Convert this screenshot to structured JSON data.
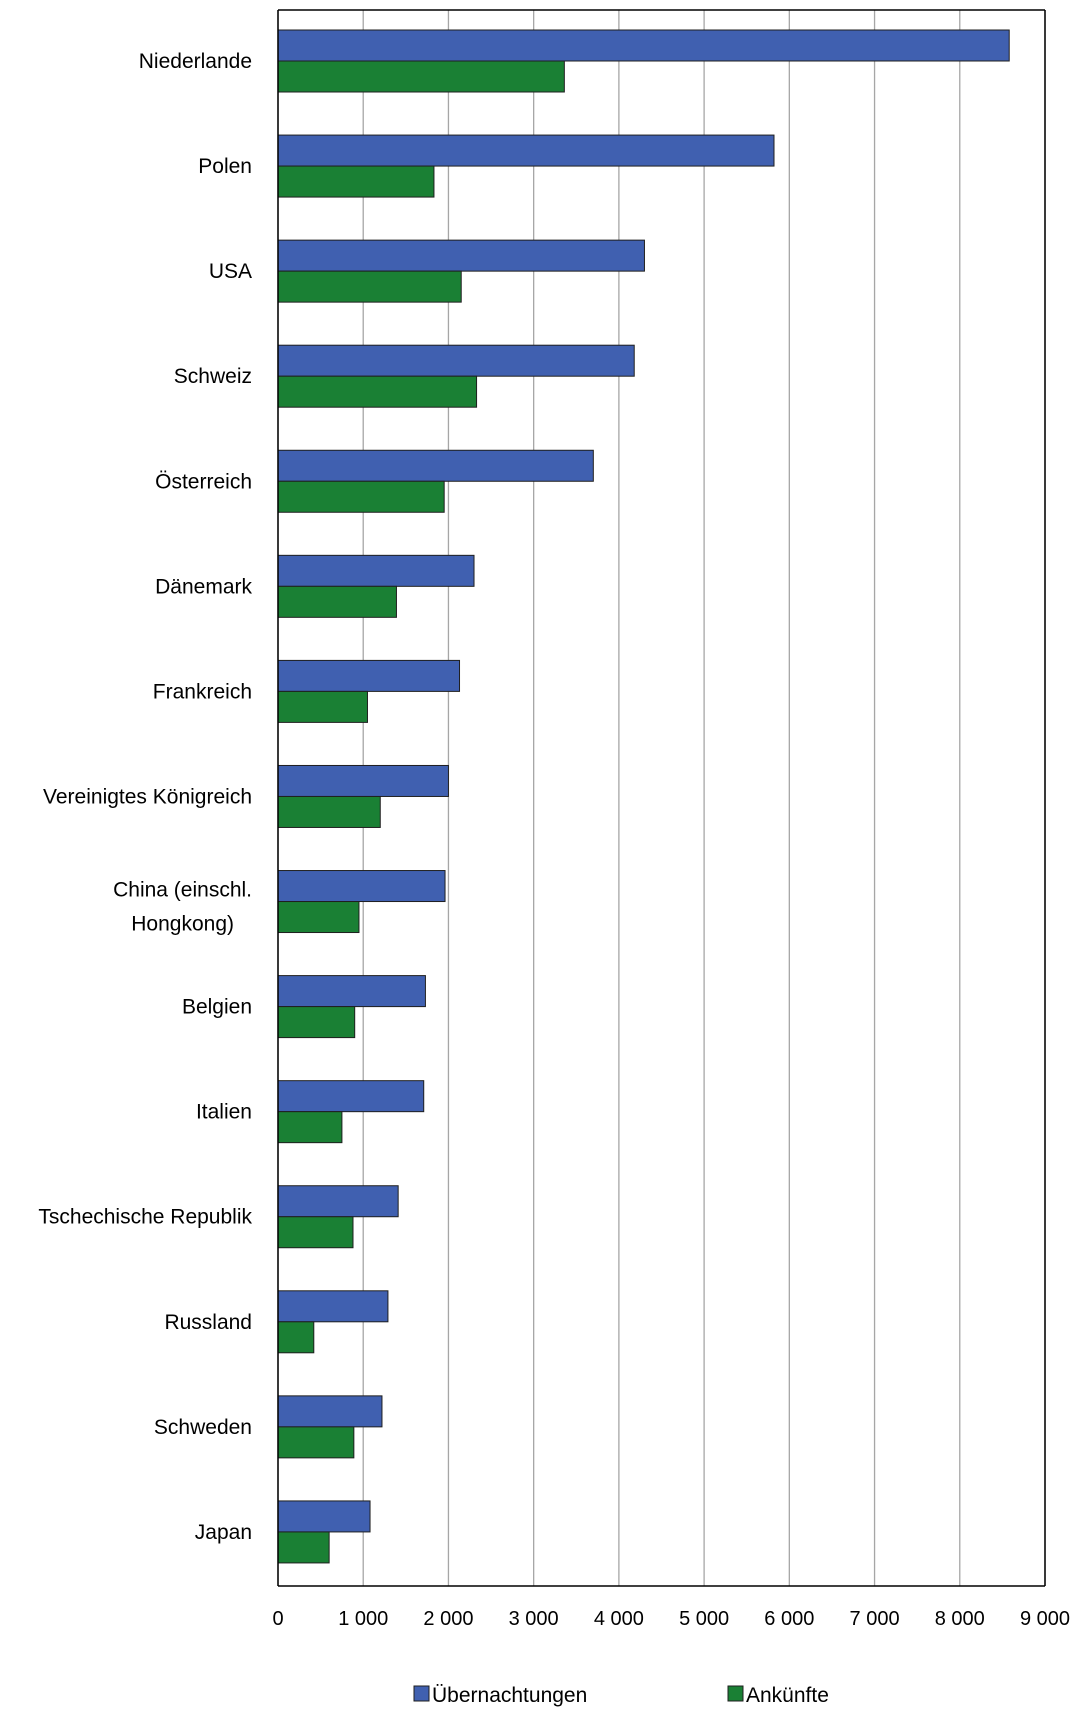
{
  "chart_data": {
    "type": "bar",
    "orientation": "horizontal",
    "categories": [
      "Niederlande",
      "Polen",
      "USA",
      "Schweiz",
      "Österreich",
      "Dänemark",
      "Frankreich",
      "Vereinigtes Königreich",
      "China (einschl. Hongkong)",
      "Belgien",
      "Italien",
      "Tschechische Republik",
      "Russland",
      "Schweden",
      "Japan"
    ],
    "series": [
      {
        "name": "Übernachtungen",
        "color": "#4060b0",
        "values": [
          8580,
          5820,
          4300,
          4180,
          3700,
          2300,
          2130,
          2000,
          1960,
          1730,
          1710,
          1410,
          1290,
          1220,
          1080
        ]
      },
      {
        "name": "Ankünfte",
        "color": "#1a8034",
        "values": [
          3360,
          1830,
          2150,
          2330,
          1950,
          1390,
          1050,
          1200,
          950,
          900,
          750,
          880,
          420,
          890,
          600
        ]
      }
    ],
    "xlim": [
      0,
      9000
    ],
    "xticks": [
      0,
      1000,
      2000,
      3000,
      4000,
      5000,
      6000,
      7000,
      8000,
      9000
    ],
    "xtick_labels": [
      "0",
      "1 000",
      "2 000",
      "3 000",
      "4 000",
      "5 000",
      "6 000",
      "7 000",
      "8 000",
      "9 000"
    ],
    "grid": "vertical",
    "legend_position": "bottom",
    "title": "",
    "xlabel": "",
    "ylabel": ""
  }
}
